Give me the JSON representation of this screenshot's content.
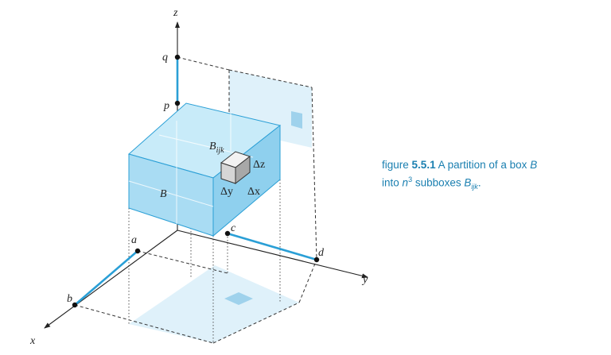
{
  "axes": {
    "x": "x",
    "y": "y",
    "z": "z"
  },
  "points": {
    "a": "a",
    "b": "b",
    "c": "c",
    "d": "d",
    "p": "p",
    "q": "q"
  },
  "box_label": "B",
  "subbox_label": {
    "base": "B",
    "sub": "ijk"
  },
  "deltas": {
    "dx": "Δx",
    "dy": "Δy",
    "dz": "Δz"
  },
  "caption": {
    "prefix": "figure",
    "number": "5.5.1",
    "text_1": "A partition of a box",
    "box": "B",
    "line2_start": "into",
    "n": "n",
    "power": "3",
    "text_2": "subboxes",
    "sub_base": "B",
    "sub_index": "ijk",
    "end": "."
  },
  "colors": {
    "axis_highlight": "#2a9fd6",
    "box_fill": "#a9dcf3",
    "shadow_fill": "#d9eff9",
    "caption": "#1a7fb0"
  }
}
